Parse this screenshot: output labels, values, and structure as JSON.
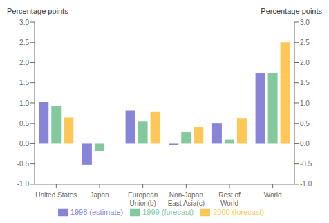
{
  "chart_data": {
    "type": "bar",
    "ylabel": "Percentage points",
    "y2label": "Percentage points",
    "categories": [
      "United States",
      "Japan",
      "European\nUnion(b)",
      "Non-Japan\nEast Asia(c)",
      "Rest of\nWorld",
      "World"
    ],
    "series": [
      {
        "name": "1998 (estimate)",
        "values": [
          1.02,
          -0.52,
          0.82,
          -0.03,
          0.5,
          1.75
        ]
      },
      {
        "name": "1999 (forecast)",
        "values": [
          0.93,
          -0.18,
          0.55,
          0.28,
          0.1,
          1.75
        ]
      },
      {
        "name": "2000 (forecast)",
        "values": [
          0.65,
          0.0,
          0.78,
          0.4,
          0.62,
          2.5
        ]
      }
    ],
    "ylim": [
      -1.0,
      3.0
    ],
    "yticks": [
      {
        "value": -1.0,
        "label": "-1.0"
      },
      {
        "value": -0.5,
        "label": "-0.5"
      },
      {
        "value": 0.0,
        "label": "0.0"
      },
      {
        "value": 0.5,
        "label": "0.5"
      },
      {
        "value": 1.0,
        "label": "1.0"
      },
      {
        "value": 1.5,
        "label": "1.5"
      },
      {
        "value": 2.0,
        "label": "2.0"
      },
      {
        "value": 2.5,
        "label": "2.5"
      },
      {
        "value": 3.0,
        "label": "3.0"
      }
    ],
    "y2lim": [
      -1.0,
      3.0
    ],
    "y2ticks": [
      {
        "value": -1.0,
        "label": "-1.0"
      },
      {
        "value": -0.5,
        "label": "-0.5"
      },
      {
        "value": 0.0,
        "label": "0.0"
      },
      {
        "value": 0.5,
        "label": "0.5"
      },
      {
        "value": 1.0,
        "label": "1.0"
      },
      {
        "value": 1.5,
        "label": "1.5"
      },
      {
        "value": 2.0,
        "label": "2.0"
      },
      {
        "value": 2.5,
        "label": "2.5"
      },
      {
        "value": 3.0,
        "label": "3.0"
      }
    ],
    "legend": "bottom"
  }
}
